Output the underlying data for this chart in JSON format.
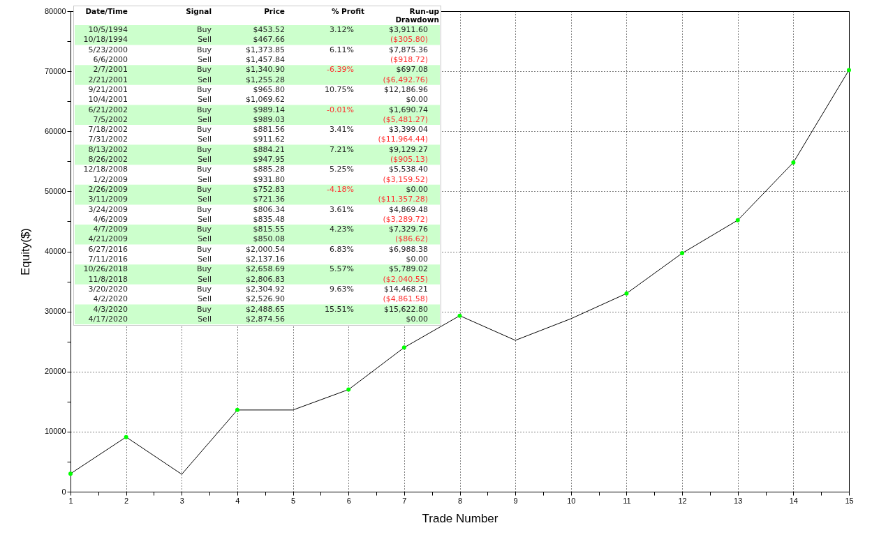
{
  "chart_data": [
    {
      "type": "line",
      "xlabel": "Trade Number",
      "ylabel": "Equity($)",
      "x": [
        1,
        2,
        3,
        4,
        5,
        6,
        7,
        8,
        9,
        10,
        11,
        12,
        13,
        14,
        15
      ],
      "series": [
        {
          "type": "line",
          "color": "#000000",
          "marker": "none",
          "values": [
            3000,
            9100,
            2900,
            13600,
            13600,
            17000,
            24000,
            29300,
            25200,
            28800,
            33000,
            39700,
            45200,
            54800,
            70200
          ]
        },
        {
          "type": "scatter",
          "color": "#00ff00",
          "marker": "circle",
          "x": [
            1,
            2,
            4,
            6,
            7,
            8,
            11,
            12,
            13,
            14,
            15
          ],
          "values": [
            3000,
            9100,
            13600,
            17000,
            24000,
            29300,
            33000,
            39700,
            45200,
            54800,
            70200
          ]
        }
      ],
      "xlim": [
        1,
        15
      ],
      "xticks": [
        1,
        {
          "value": 1.5,
          "label": null
        },
        2,
        {
          "value": 2.5,
          "label": null
        },
        3,
        {
          "value": 3.5,
          "label": null
        },
        4,
        {
          "value": 4.5,
          "label": null
        },
        5,
        {
          "value": 5.5,
          "label": null
        },
        6,
        {
          "value": 6.5,
          "label": null
        },
        7,
        {
          "value": 7.5,
          "label": null
        },
        8,
        {
          "value": 8.5,
          "label": null
        },
        9,
        {
          "value": 9.5,
          "label": null
        },
        10,
        {
          "value": 10.5,
          "label": null
        },
        11,
        {
          "value": 11.5,
          "label": null
        },
        12,
        {
          "value": 12.5,
          "label": null
        },
        13,
        {
          "value": 13.5,
          "label": null
        },
        14,
        {
          "value": 14.5,
          "label": null
        },
        15
      ],
      "ylim": [
        0,
        80000
      ],
      "yticks": [
        0,
        {
          "value": 5000,
          "label": null
        },
        10000,
        {
          "value": 15000,
          "label": null
        },
        20000,
        {
          "value": 25000,
          "label": null
        },
        30000,
        {
          "value": 35000,
          "label": null
        },
        40000,
        {
          "value": 45000,
          "label": null
        },
        50000,
        {
          "value": 55000,
          "label": null
        },
        60000,
        {
          "value": 65000,
          "label": null
        },
        70000,
        {
          "value": 75000,
          "label": null
        },
        80000
      ],
      "grid": true
    },
    {
      "type": "other",
      "categories": [
        "Date/Time",
        "Signal",
        "Price",
        "% Profit",
        "Run-up\nDrawdown"
      ],
      "cell_labels": [
        [
          "10/5/1994",
          "Buy",
          "$453.52",
          "3.12%",
          "$3,911.60"
        ],
        [
          "10/18/1994",
          "Sell",
          "$467.66",
          null,
          "($305.80)"
        ],
        [
          "5/23/2000",
          "Buy",
          "$1,373.85",
          "6.11%",
          "$7,875.36"
        ],
        [
          "6/6/2000",
          "Sell",
          "$1,457.84",
          null,
          "($918.72)"
        ],
        [
          "2/7/2001",
          "Buy",
          "$1,340.90",
          "-6.39%",
          "$697.08"
        ],
        [
          "2/21/2001",
          "Sell",
          "$1,255.28",
          null,
          "($6,492.76)"
        ],
        [
          "9/21/2001",
          "Buy",
          "$965.80",
          "10.75%",
          "$12,186.96"
        ],
        [
          "10/4/2001",
          "Sell",
          "$1,069.62",
          null,
          "$0.00"
        ],
        [
          "6/21/2002",
          "Buy",
          "$989.14",
          "-0.01%",
          "$1,690.74"
        ],
        [
          "7/5/2002",
          "Sell",
          "$989.03",
          null,
          "($5,481.27)"
        ],
        [
          "7/18/2002",
          "Buy",
          "$881.56",
          "3.41%",
          "$3,399.04"
        ],
        [
          "7/31/2002",
          "Sell",
          "$911.62",
          null,
          "($11,964.44)"
        ],
        [
          "8/13/2002",
          "Buy",
          "$884.21",
          "7.21%",
          "$9,129.27"
        ],
        [
          "8/26/2002",
          "Sell",
          "$947.95",
          null,
          "($905.13)"
        ],
        [
          "12/18/2008",
          "Buy",
          "$885.28",
          "5.25%",
          "$5,538.40"
        ],
        [
          "1/2/2009",
          "Sell",
          "$931.80",
          null,
          "($3,159.52)"
        ],
        [
          "2/26/2009",
          "Buy",
          "$752.83",
          "-4.18%",
          "$0.00"
        ],
        [
          "3/11/2009",
          "Sell",
          "$721.36",
          null,
          "($11,357.28)"
        ],
        [
          "3/24/2009",
          "Buy",
          "$806.34",
          "3.61%",
          "$4,869.48"
        ],
        [
          "4/6/2009",
          "Sell",
          "$835.48",
          null,
          "($3,289.72)"
        ],
        [
          "4/7/2009",
          "Buy",
          "$815.55",
          "4.23%",
          "$7,329.76"
        ],
        [
          "4/21/2009",
          "Sell",
          "$850.08",
          null,
          "($86.62)"
        ],
        [
          "6/27/2016",
          "Buy",
          "$2,000.54",
          "6.83%",
          "$6,988.38"
        ],
        [
          "7/11/2016",
          "Sell",
          "$2,137.16",
          null,
          "$0.00"
        ],
        [
          "10/26/2018",
          "Buy",
          "$2,658.69",
          "5.57%",
          "$5,789.02"
        ],
        [
          "11/8/2018",
          "Sell",
          "$2,806.83",
          null,
          "($2,040.55)"
        ],
        [
          "3/20/2020",
          "Buy",
          "$2,304.92",
          "9.63%",
          "$14,468.21"
        ],
        [
          "4/2/2020",
          "Sell",
          "$2,526.90",
          null,
          "($4,861.58)"
        ],
        [
          "4/3/2020",
          "Buy",
          "$2,488.65",
          "15.51%",
          "$15,622.80"
        ],
        [
          "4/17/2020",
          "Sell",
          "$2,874.56",
          null,
          "$0.00"
        ]
      ]
    }
  ]
}
